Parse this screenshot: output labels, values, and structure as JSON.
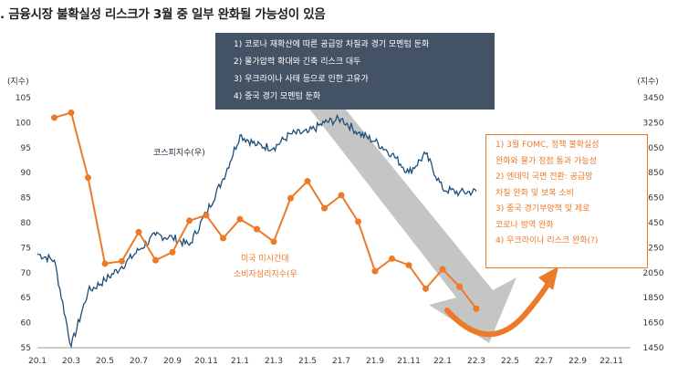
{
  "title": ". 금융시장 불확실성 리스크가 3월 중 일부 완화될 가능성이 있음",
  "colors": {
    "kospi": "#1f4e79",
    "sentiment": "#ec7a28",
    "dark_box": "#445266",
    "arrow": "#bfbfbf"
  },
  "chart_data": {
    "type": "line",
    "x_ticks": [
      "20.1",
      "20.3",
      "20.5",
      "20.7",
      "20.9",
      "20.11",
      "21.1",
      "21.3",
      "21.5",
      "21.7",
      "21.9",
      "21.11",
      "22.1",
      "22.3",
      "22.5",
      "22.7",
      "22.9",
      "22.11"
    ],
    "left_axis": {
      "label": "(지수)",
      "range": [
        55,
        105
      ],
      "ticks": [
        55,
        60,
        65,
        70,
        75,
        80,
        85,
        90,
        95,
        100,
        105
      ]
    },
    "right_axis": {
      "label": "(지수)",
      "range": [
        1450,
        3450
      ],
      "ticks": [
        1450,
        1650,
        1850,
        2050,
        2250,
        2450,
        2650,
        2850,
        3050,
        3250,
        3450
      ]
    },
    "series": [
      {
        "name": "미국 미시간대 소비자심리지수(우)",
        "axis": "left",
        "style": "line+markers",
        "x": [
          "20.2",
          "20.3",
          "20.4",
          "20.5",
          "20.6",
          "20.7",
          "20.8",
          "20.9",
          "20.10",
          "20.11",
          "20.12",
          "21.1",
          "21.2",
          "21.3",
          "21.4",
          "21.5",
          "21.6",
          "21.7",
          "21.8",
          "21.9",
          "21.10",
          "21.11",
          "21.12",
          "22.1",
          "22.2",
          "22.3"
        ],
        "values": [
          101,
          102,
          89,
          71.8,
          72.3,
          78.1,
          72.5,
          74.1,
          80.4,
          81.5,
          76.9,
          80.7,
          78.7,
          76.2,
          84.9,
          88.3,
          82.9,
          85.5,
          80.2,
          70.3,
          72.8,
          71.5,
          66.8,
          70.7,
          67.2,
          62.8
        ]
      },
      {
        "name": "코스피지수(우)",
        "axis": "right",
        "style": "line",
        "x": [
          "20.1",
          "20.2",
          "20.3",
          "20.4",
          "20.5",
          "20.6",
          "20.7",
          "20.8",
          "20.9",
          "20.10",
          "20.11",
          "20.12",
          "21.1",
          "21.2",
          "21.3",
          "21.4",
          "21.5",
          "21.6",
          "21.7",
          "21.8",
          "21.9",
          "21.10",
          "21.11",
          "21.12",
          "22.1",
          "22.2",
          "22.3"
        ],
        "values": [
          2200,
          2150,
          1460,
          1900,
          1990,
          2100,
          2230,
          2350,
          2330,
          2270,
          2530,
          2800,
          3150,
          3070,
          3050,
          3160,
          3170,
          3250,
          3280,
          3170,
          3100,
          3000,
          2850,
          3000,
          2720,
          2690,
          2700
        ]
      }
    ],
    "annotations": {
      "dark_box": [
        "1) 코로나 재확산에 따른 공급망 차질과 경기 모멘텀 둔화",
        "2) 물가압력 확대와 긴축 리스크 대두",
        "3) 우크라이나 사태 등으로 인한 고유가",
        "4) 중국 경기 모멘텀 둔화"
      ],
      "orange_box": [
        "1) 3월 FOMC, 정책 불확실성",
        "   완화와 물가 정점 통과 가능성",
        "2) 엔데믹 국면 전환: 공급망",
        "   차질 완화 및 보복 소비",
        "3) 중국 경기부양책 및 제로",
        "   코로나 방역 완화",
        "4) 우크라이나 리스크 완화(?)"
      ],
      "kospi_label": "코스피지수(우)",
      "sentiment_label_line1": "미국 미시간대",
      "sentiment_label_line2": "소비자심리지수(우"
    }
  }
}
